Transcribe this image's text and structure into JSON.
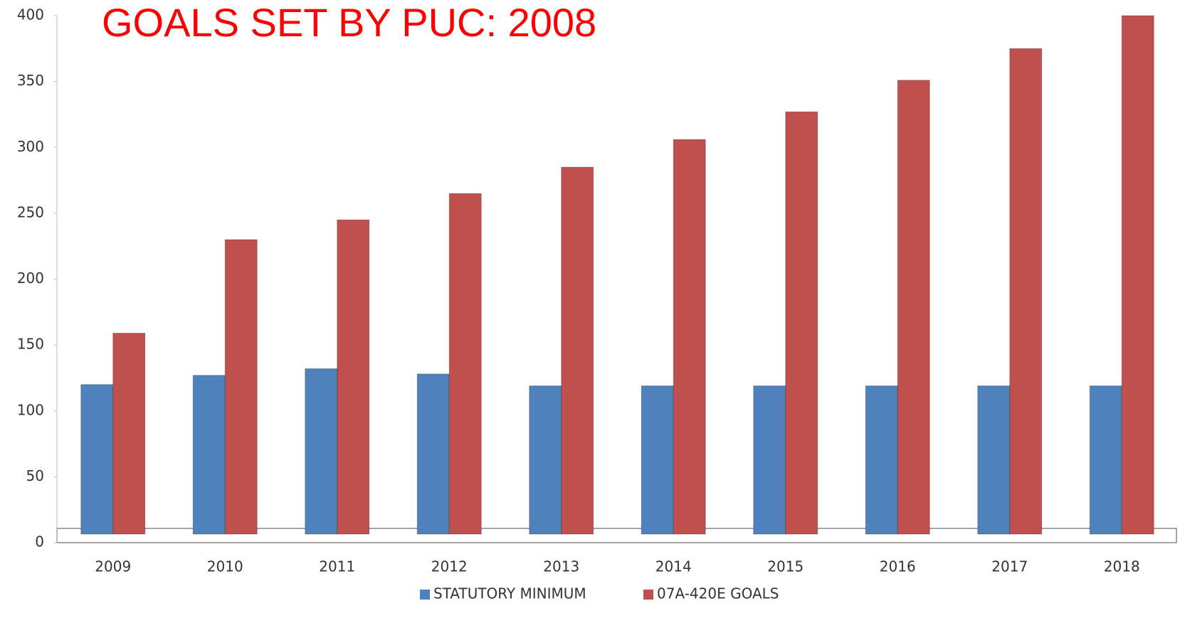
{
  "chart_data": {
    "type": "bar",
    "title": "GOALS SET BY PUC: 2008",
    "categories": [
      "2009",
      "2010",
      "2011",
      "2012",
      "2013",
      "2014",
      "2015",
      "2016",
      "2017",
      "2018"
    ],
    "series": [
      {
        "name": "STATUTORY MINIMUM",
        "color": "#4f81bd",
        "values": [
          120,
          127,
          132,
          128,
          119,
          119,
          119,
          119,
          119,
          119
        ]
      },
      {
        "name": "07A-420E GOALS",
        "color": "#c0504d",
        "values": [
          159,
          230,
          245,
          265,
          285,
          306,
          327,
          351,
          375,
          400
        ]
      }
    ],
    "ylim": [
      0,
      400
    ],
    "yticks": [
      0,
      50,
      100,
      150,
      200,
      250,
      300,
      350,
      400
    ],
    "legend": "bottom"
  }
}
